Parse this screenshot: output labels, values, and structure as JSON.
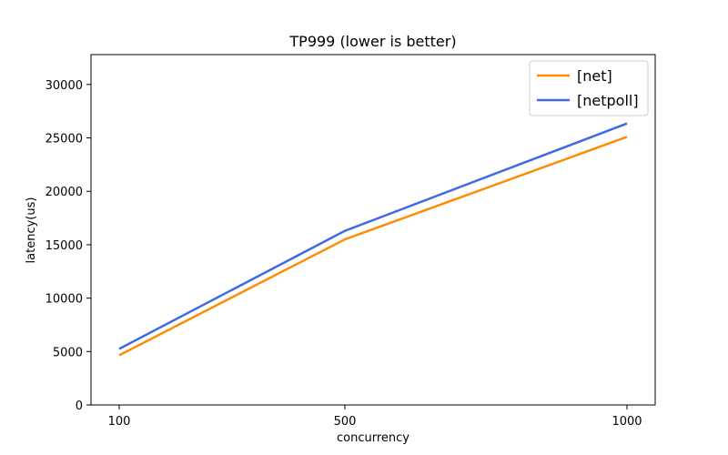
{
  "chart_data": {
    "type": "line",
    "title": "TP999 (lower is better)",
    "xlabel": "concurrency",
    "ylabel": "latency(us)",
    "x": [
      100,
      500,
      1000
    ],
    "xticks": [
      "100",
      "500",
      "1000"
    ],
    "yticks": [
      "0",
      "5000",
      "10000",
      "15000",
      "20000",
      "25000",
      "30000"
    ],
    "ylim": [
      0,
      32800
    ],
    "xlim": [
      50,
      1050
    ],
    "grid": false,
    "legend_position": "top-right",
    "series": [
      {
        "name": "[net]",
        "color": "#ff8c00",
        "values": [
          4650,
          15500,
          25100
        ]
      },
      {
        "name": "[netpoll]",
        "color": "#4169e1",
        "values": [
          5250,
          16300,
          26350
        ]
      }
    ]
  }
}
